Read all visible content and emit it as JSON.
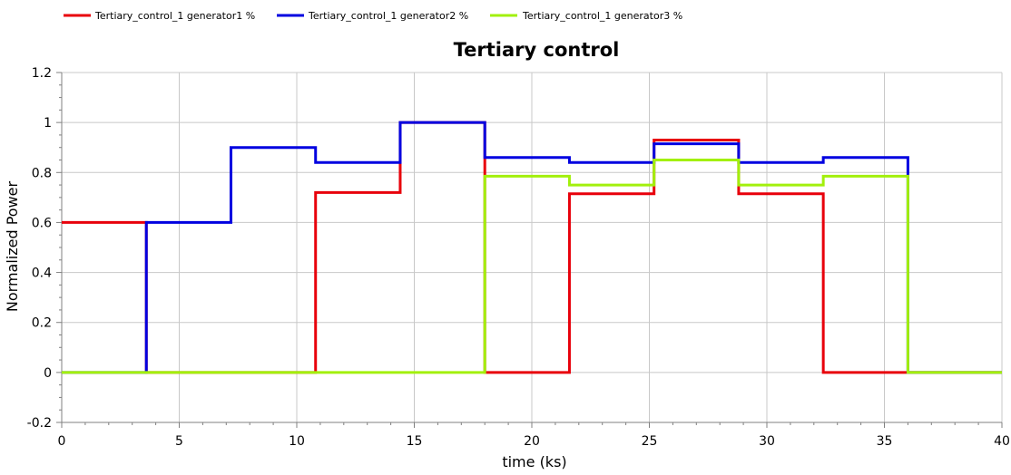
{
  "chart_data": {
    "type": "line",
    "step": true,
    "title": "Tertiary control",
    "xlabel": "time (ks)",
    "ylabel": "Normalized Power",
    "xlim": [
      0,
      40
    ],
    "ylim": [
      -0.2,
      1.2
    ],
    "xticks": [
      0,
      5,
      10,
      15,
      20,
      25,
      30,
      35,
      40
    ],
    "yticks": [
      -0.2,
      0,
      0.2,
      0.4,
      0.6,
      0.8,
      1,
      1.2
    ],
    "ytick_labels": [
      "-0.2",
      "0",
      "0.2",
      "0.4",
      "0.6",
      "0.8",
      "1",
      "1.2"
    ],
    "grid": true,
    "legend_position": "top",
    "series": [
      {
        "name": "Tertiary_control_1 generator1 %",
        "color": "#e8000b",
        "x": [
          0,
          3.6,
          7.2,
          10.8,
          14.4,
          18,
          21.6,
          25.2,
          28.8,
          32.4,
          36,
          40
        ],
        "y": [
          0.6,
          0,
          0,
          0.72,
          1.0,
          0,
          0.715,
          0.93,
          0.715,
          0,
          0,
          0
        ]
      },
      {
        "name": "Tertiary_control_1 generator2 %",
        "color": "#0000e0",
        "x": [
          0,
          3.6,
          7.2,
          10.8,
          14.4,
          18,
          21.6,
          25.2,
          28.8,
          32.4,
          36,
          40
        ],
        "y": [
          0,
          0.6,
          0.9,
          0.84,
          1.0,
          0.86,
          0.84,
          0.915,
          0.84,
          0.86,
          0,
          0
        ]
      },
      {
        "name": "Tertiary_control_1 generator3 %",
        "color": "#a2f00c",
        "x": [
          0,
          3.6,
          7.2,
          10.8,
          14.4,
          18,
          21.6,
          25.2,
          28.8,
          32.4,
          36,
          40
        ],
        "y": [
          0,
          0,
          0,
          0,
          0,
          0.785,
          0.75,
          0.85,
          0.75,
          0.785,
          0,
          0
        ]
      }
    ]
  }
}
